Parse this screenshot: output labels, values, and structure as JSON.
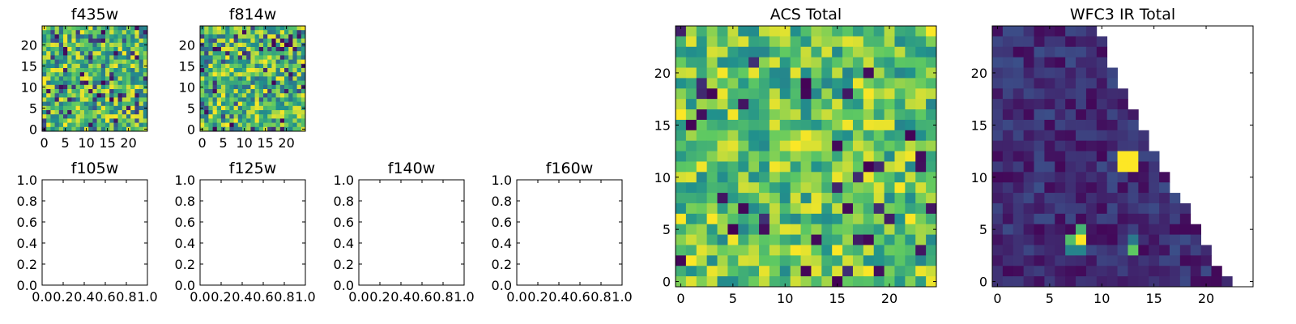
{
  "colormap": [
    "#440154",
    "#3b528b",
    "#21918c",
    "#5ec962",
    "#fde725"
  ],
  "chart_data": [
    {
      "id": "f435w",
      "type": "heatmap",
      "title": "f435w",
      "colormap": "viridis",
      "grid_size": 25,
      "xlim": [
        -0.5,
        24.5
      ],
      "ylim": [
        -0.5,
        24.5
      ],
      "xticks": [
        "0",
        "5",
        "10",
        "15",
        "20"
      ],
      "yticks": [
        "0",
        "5",
        "10",
        "15",
        "20"
      ],
      "description": "dense random mosaic, mostly green-yellow with scattered dark cells",
      "value_range": [
        0,
        1
      ]
    },
    {
      "id": "f814w",
      "type": "heatmap",
      "title": "f814w",
      "colormap": "viridis",
      "grid_size": 25,
      "xlim": [
        -0.5,
        24.5
      ],
      "ylim": [
        -0.5,
        24.5
      ],
      "xticks": [
        "0",
        "5",
        "10",
        "15",
        "20"
      ],
      "yticks": [
        "0",
        "5",
        "10",
        "15",
        "20"
      ],
      "value_range": [
        0,
        1
      ]
    },
    {
      "id": "f105w",
      "type": "empty",
      "title": "f105w",
      "xlim": [
        0,
        1
      ],
      "ylim": [
        0,
        1
      ],
      "xticks": [
        "0.0",
        "0.2",
        "0.4",
        "0.6",
        "0.8",
        "1.0"
      ],
      "yticks": [
        "0.0",
        "0.2",
        "0.4",
        "0.6",
        "0.8",
        "1.0"
      ]
    },
    {
      "id": "f125w",
      "type": "empty",
      "title": "f125w",
      "xlim": [
        0,
        1
      ],
      "ylim": [
        0,
        1
      ],
      "xticks": [
        "0.0",
        "0.2",
        "0.4",
        "0.6",
        "0.8",
        "1.0"
      ],
      "yticks": [
        "0.0",
        "0.2",
        "0.4",
        "0.6",
        "0.8",
        "1.0"
      ]
    },
    {
      "id": "f140w",
      "type": "empty",
      "title": "f140w",
      "xlim": [
        0,
        1
      ],
      "ylim": [
        0,
        1
      ],
      "xticks": [
        "0.0",
        "0.2",
        "0.4",
        "0.6",
        "0.8",
        "1.0"
      ],
      "yticks": [
        "0.0",
        "0.2",
        "0.4",
        "0.6",
        "0.8",
        "1.0"
      ]
    },
    {
      "id": "f160w",
      "type": "empty",
      "title": "f160w",
      "xlim": [
        0,
        1
      ],
      "ylim": [
        0,
        1
      ],
      "xticks": [
        "0.0",
        "0.2",
        "0.4",
        "0.6",
        "0.8",
        "1.0"
      ],
      "yticks": [
        "0.0",
        "0.2",
        "0.4",
        "0.6",
        "0.8",
        "1.0"
      ]
    },
    {
      "id": "acs-total",
      "type": "heatmap",
      "title": "ACS Total",
      "colormap": "viridis",
      "grid_size": 25,
      "xlim": [
        -0.5,
        24.5
      ],
      "ylim": [
        -0.5,
        24.5
      ],
      "xticks": [
        "0",
        "5",
        "10",
        "15",
        "20"
      ],
      "yticks": [
        "0",
        "5",
        "10",
        "15",
        "20"
      ],
      "value_range": [
        0,
        1
      ]
    },
    {
      "id": "wfc3-ir-total",
      "type": "heatmap",
      "title": "WFC3 IR Total",
      "colormap": "viridis",
      "grid_size": 25,
      "xlim": [
        -0.5,
        24.5
      ],
      "ylim": [
        -0.5,
        24.5
      ],
      "xticks": [
        "0",
        "5",
        "10",
        "15",
        "20"
      ],
      "yticks": [
        "0",
        "5",
        "10",
        "15",
        "20"
      ],
      "value_range": [
        0,
        1
      ],
      "row_extent": [
        10,
        11,
        11,
        11,
        12,
        12,
        13,
        13,
        14,
        14,
        15,
        15,
        16,
        16,
        17,
        17,
        18,
        19,
        19,
        20,
        20,
        21,
        21,
        22,
        23
      ],
      "hotspots": [
        {
          "x": 12,
          "y": 11,
          "value": 1.0
        },
        {
          "x": 13,
          "y": 11,
          "value": 1.0
        },
        {
          "x": 12,
          "y": 12,
          "value": 1.0
        },
        {
          "x": 13,
          "y": 12,
          "value": 1.0
        },
        {
          "x": 8,
          "y": 4,
          "value": 1.0
        },
        {
          "x": 7,
          "y": 4,
          "value": 0.7
        },
        {
          "x": 8,
          "y": 5,
          "value": 0.65
        },
        {
          "x": 7,
          "y": 3,
          "value": 0.45
        },
        {
          "x": 8,
          "y": 3,
          "value": 0.45
        },
        {
          "x": 13,
          "y": 3,
          "value": 0.75
        },
        {
          "x": 13,
          "y": 4,
          "value": 0.4
        }
      ]
    }
  ]
}
